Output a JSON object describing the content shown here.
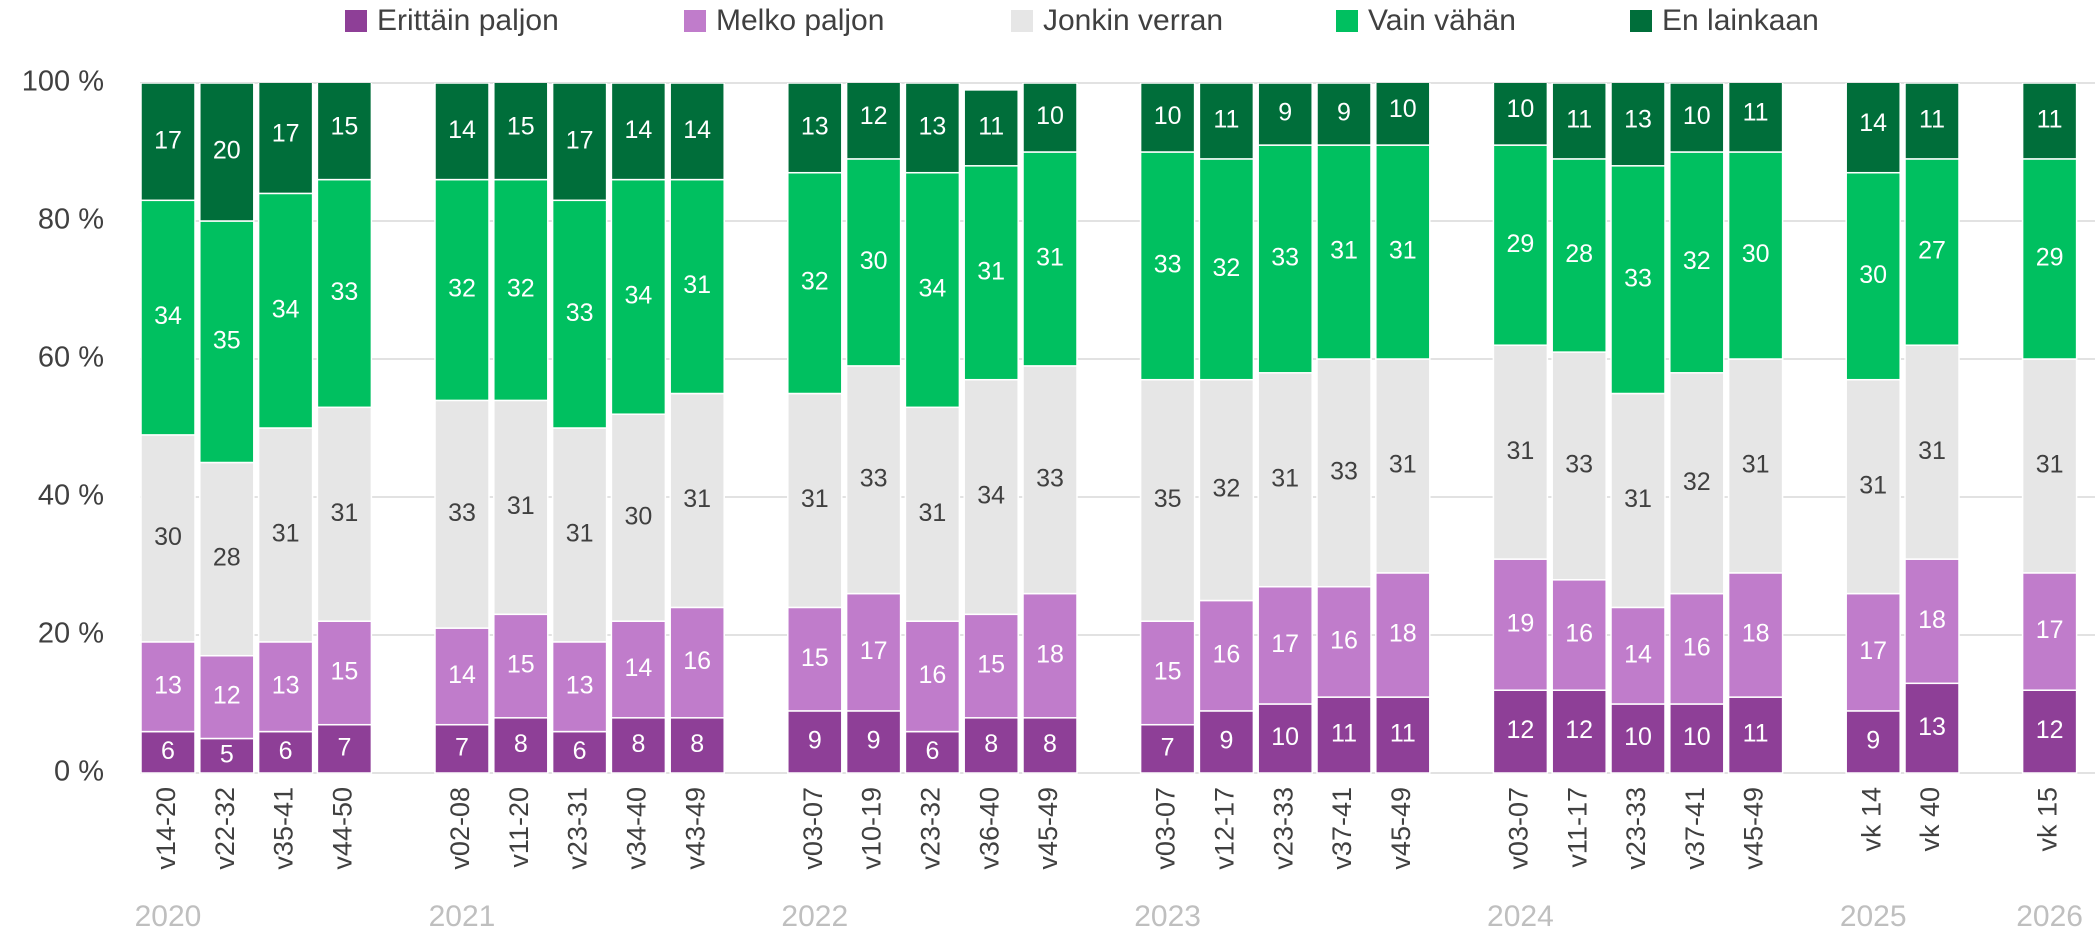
{
  "chart_data": {
    "type": "stacked_bar",
    "groups": [
      "2020",
      "2021",
      "2022",
      "2023",
      "2024",
      "2025",
      "2026"
    ],
    "categories": [
      "v14-20",
      "v22-32",
      "v35-41",
      "v44-50",
      null,
      "v02-08",
      "v11-20",
      "v23-31",
      "v34-40",
      "v43-49",
      null,
      "v03-07",
      "v10-19",
      "v23-32",
      "v36-40",
      "v45-49",
      null,
      "v03-07",
      "v12-17",
      "v23-33",
      "v37-41",
      "v45-49",
      null,
      "v03-07",
      "v11-17",
      "v23-33",
      "v37-41",
      "v45-49",
      null,
      "vk 14",
      "vk 40",
      null,
      "vk 15"
    ],
    "series": [
      {
        "name": "Erittäin paljon",
        "color": "#8e3f97",
        "values": [
          6,
          5,
          6,
          7,
          null,
          7,
          8,
          6,
          8,
          8,
          null,
          9,
          9,
          6,
          8,
          8,
          null,
          7,
          9,
          10,
          11,
          11,
          null,
          12,
          12,
          10,
          10,
          11,
          null,
          9,
          13,
          null,
          12
        ]
      },
      {
        "name": "Melko paljon",
        "color": "#c07ccb",
        "values": [
          13,
          12,
          13,
          15,
          null,
          14,
          15,
          13,
          14,
          16,
          null,
          15,
          17,
          16,
          15,
          18,
          null,
          15,
          16,
          17,
          16,
          18,
          null,
          19,
          16,
          14,
          16,
          18,
          null,
          17,
          18,
          null,
          17
        ]
      },
      {
        "name": "Jonkin verran",
        "color": "#e6e6e6",
        "values": [
          30,
          28,
          31,
          31,
          null,
          33,
          31,
          31,
          30,
          31,
          null,
          31,
          33,
          31,
          34,
          33,
          null,
          35,
          32,
          31,
          33,
          31,
          null,
          31,
          33,
          31,
          32,
          31,
          null,
          31,
          31,
          null,
          31
        ]
      },
      {
        "name": "Vain vähän",
        "color": "#00c060",
        "values": [
          34,
          35,
          34,
          33,
          null,
          32,
          32,
          33,
          34,
          31,
          null,
          32,
          30,
          34,
          31,
          31,
          null,
          33,
          32,
          33,
          31,
          31,
          null,
          29,
          28,
          33,
          32,
          30,
          null,
          30,
          27,
          null,
          29
        ]
      },
      {
        "name": "En lainkaan",
        "color": "#006e3a",
        "values": [
          17,
          20,
          17,
          15,
          null,
          14,
          15,
          17,
          14,
          14,
          null,
          13,
          12,
          13,
          11,
          10,
          null,
          10,
          11,
          9,
          9,
          10,
          null,
          10,
          11,
          13,
          10,
          11,
          null,
          14,
          11,
          null,
          11
        ]
      }
    ],
    "ylim": [
      0,
      100
    ],
    "yticks": [
      {
        "value": 0,
        "label": "0 %"
      },
      {
        "value": 20,
        "label": "20 %"
      },
      {
        "value": 40,
        "label": "40 %"
      },
      {
        "value": 60,
        "label": "60 %"
      },
      {
        "value": 80,
        "label": "80 %"
      },
      {
        "value": 100,
        "label": "100 %"
      }
    ],
    "grid": true,
    "legend": "top"
  }
}
